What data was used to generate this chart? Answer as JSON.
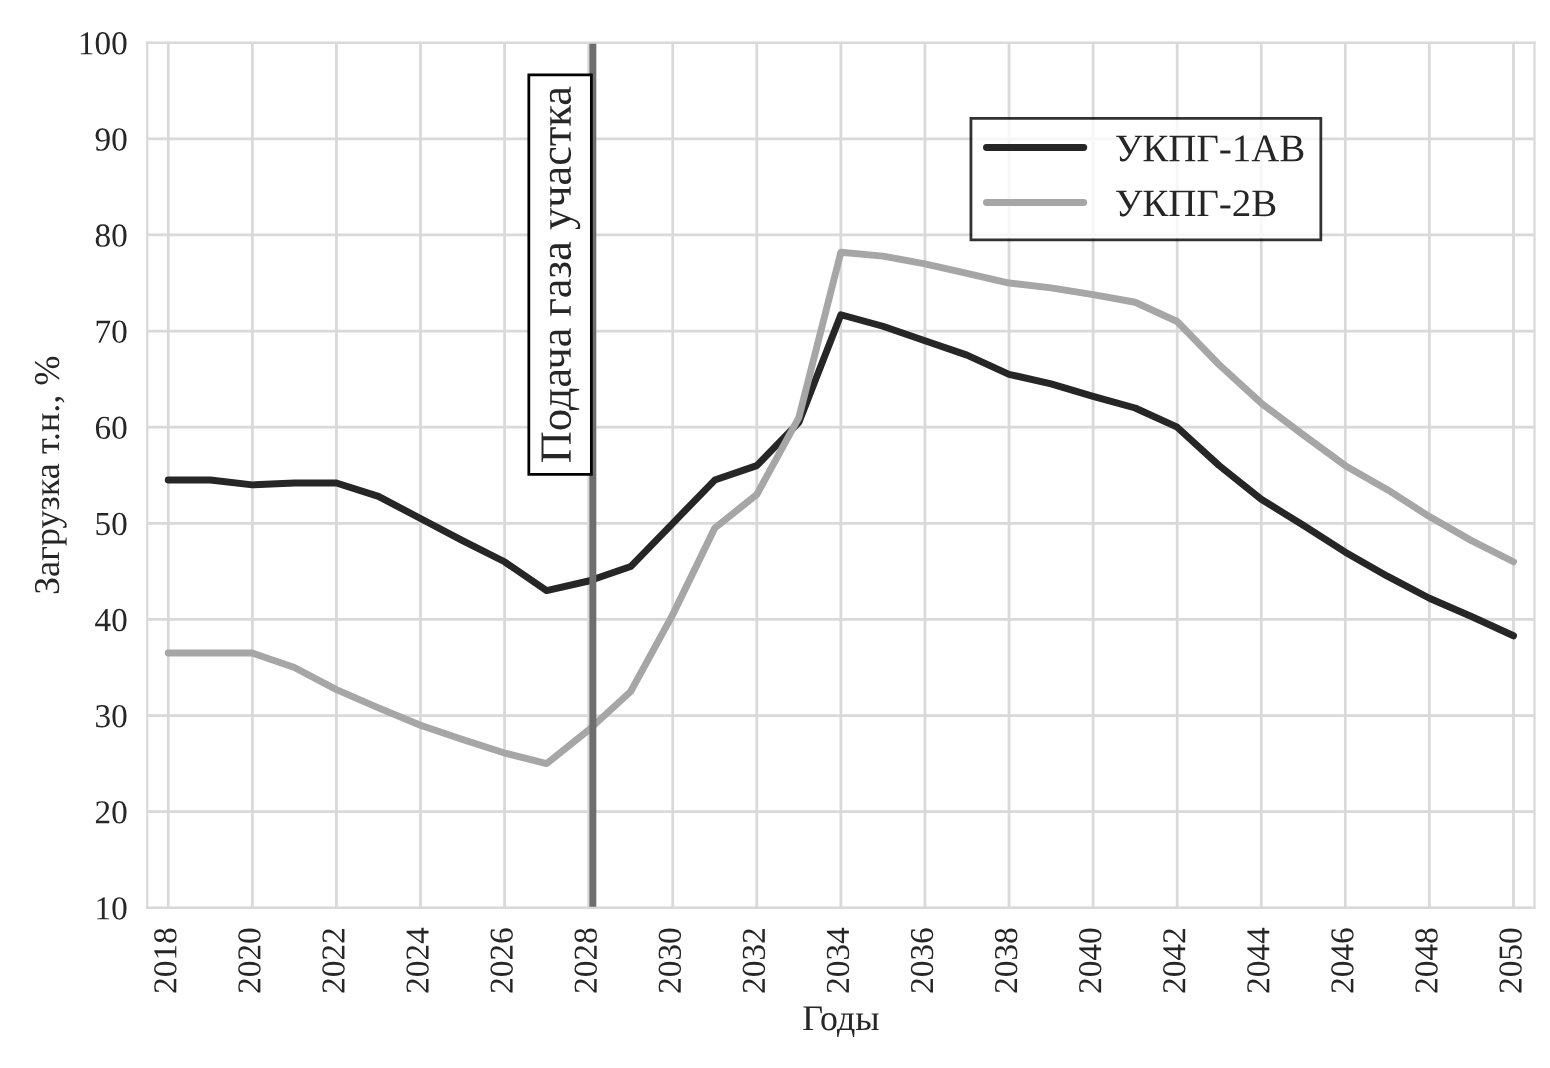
{
  "chart_data": {
    "type": "line",
    "xlabel": "Годы",
    "ylabel": "Загрузка т.н., %",
    "x": [
      2018,
      2019,
      2020,
      2021,
      2022,
      2023,
      2024,
      2025,
      2026,
      2027,
      2028,
      2029,
      2030,
      2031,
      2032,
      2033,
      2034,
      2035,
      2036,
      2037,
      2038,
      2039,
      2040,
      2041,
      2042,
      2043,
      2044,
      2045,
      2046,
      2047,
      2048,
      2049,
      2050
    ],
    "series": [
      {
        "name": "УКПГ-1АВ",
        "color": "#262626",
        "values": [
          54.5,
          54.5,
          54,
          54.2,
          54.2,
          52.8,
          50.5,
          48.2,
          46,
          43,
          44,
          45.5,
          50,
          54.5,
          56,
          60.5,
          71.7,
          70.5,
          69,
          67.5,
          65.5,
          64.5,
          63.2,
          62,
          60,
          56,
          52.5,
          49.8,
          47,
          44.5,
          42.2,
          40.3,
          38.3
        ]
      },
      {
        "name": "УКПГ-2В",
        "color": "#a6a6a6",
        "values": [
          36.5,
          36.5,
          36.5,
          35,
          32.7,
          30.8,
          29,
          27.5,
          26.1,
          25,
          28.5,
          32.5,
          40.5,
          49.5,
          53,
          61,
          78.2,
          77.8,
          77,
          76,
          75,
          74.5,
          73.8,
          73,
          71,
          66.5,
          62.5,
          59.2,
          56,
          53.5,
          50.7,
          48.2,
          46
        ]
      }
    ],
    "xlim": [
      2017.5,
      2050.5
    ],
    "xticks": [
      2018,
      2020,
      2022,
      2024,
      2026,
      2028,
      2030,
      2032,
      2034,
      2036,
      2038,
      2040,
      2042,
      2044,
      2046,
      2048,
      2050
    ],
    "ylim": [
      10,
      100
    ],
    "yticks": [
      10,
      20,
      30,
      40,
      50,
      60,
      70,
      80,
      90,
      100
    ],
    "ref_lines": [
      {
        "axis": "x",
        "value": 2028.1,
        "label": "Подача газа участка",
        "color": "#6e6e6e"
      }
    ],
    "grid": true,
    "legend": "top right",
    "marker": "none",
    "line_style": "solid"
  }
}
